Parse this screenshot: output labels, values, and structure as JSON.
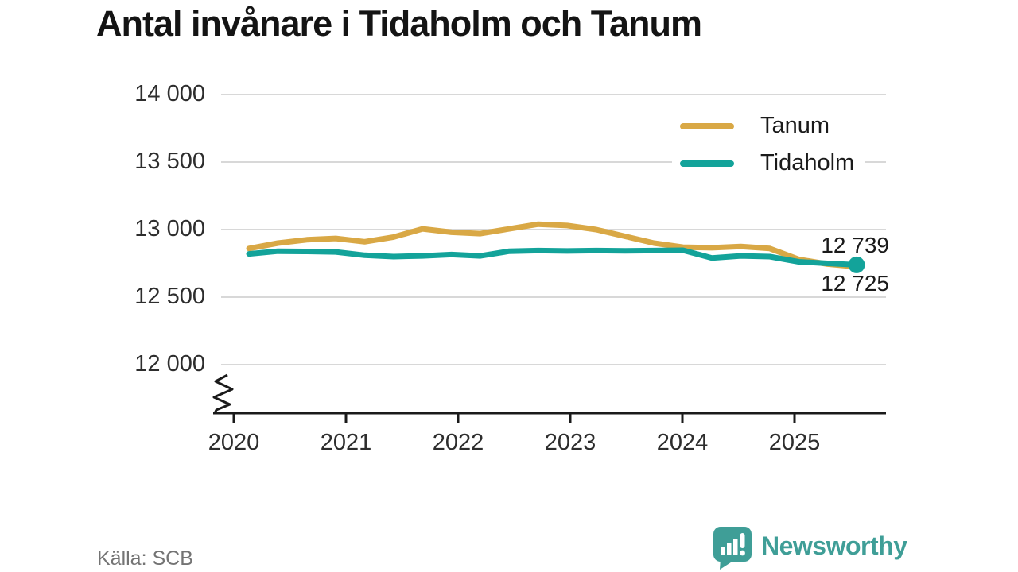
{
  "title": "Antal invånare i Tidaholm och Tanum",
  "source": "Källa: SCB",
  "brand": {
    "name": "Newsworthy",
    "color": "#3f9e97"
  },
  "colors": {
    "tanum": "#d9a845",
    "tidaholm": "#13a39a",
    "grid": "#d8d8d8",
    "axis": "#1a1a1a",
    "tick_text": "#2d2d2d",
    "muted_text": "#747474"
  },
  "end_labels": {
    "tidaholm": "12 739",
    "tanum": "12 725"
  },
  "legend": [
    {
      "label": "Tanum",
      "color": "#d9a845"
    },
    {
      "label": "Tidaholm",
      "color": "#13a39a"
    }
  ],
  "chart_data": {
    "type": "line",
    "title": "Antal invånare i Tidaholm och Tanum",
    "xlabel": "",
    "ylabel": "",
    "x_tick_labels": [
      "2020",
      "2021",
      "2022",
      "2023",
      "2024",
      "2025"
    ],
    "y_ticks": [
      14000,
      13500,
      13000,
      12500,
      12000
    ],
    "y_tick_labels": [
      "14 000",
      "13 500",
      "13 000",
      "12 500",
      "12 000"
    ],
    "ylim": [
      12000,
      14000
    ],
    "axis_break": true,
    "grid": "horizontal",
    "legend_position": "top-right",
    "periods": [
      "2020Q1",
      "2020Q2",
      "2020Q3",
      "2020Q4",
      "2021Q1",
      "2021Q2",
      "2021Q3",
      "2021Q4",
      "2022Q1",
      "2022Q2",
      "2022Q3",
      "2022Q4",
      "2023Q1",
      "2023Q2",
      "2023Q3",
      "2023Q4",
      "2024Q1",
      "2024Q2",
      "2024Q3",
      "2024Q4",
      "2025Q1",
      "2025Q2"
    ],
    "series": [
      {
        "name": "Tanum",
        "color": "#d9a845",
        "last_value_label": "12 725",
        "end_dot": false,
        "values": [
          12860,
          12900,
          12925,
          12935,
          12910,
          12945,
          13005,
          12980,
          12970,
          13005,
          13040,
          13030,
          13000,
          12950,
          12900,
          12870,
          12865,
          12875,
          12860,
          12780,
          12745,
          12725
        ]
      },
      {
        "name": "Tidaholm",
        "color": "#13a39a",
        "last_value_label": "12 739",
        "end_dot": true,
        "values": [
          12820,
          12840,
          12838,
          12835,
          12810,
          12800,
          12805,
          12815,
          12805,
          12840,
          12845,
          12842,
          12845,
          12843,
          12845,
          12847,
          12790,
          12805,
          12800,
          12762,
          12750,
          12739
        ]
      }
    ]
  }
}
